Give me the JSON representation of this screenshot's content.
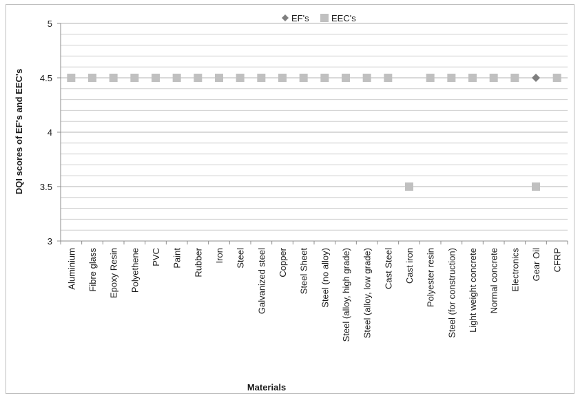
{
  "chart_data": {
    "type": "scatter",
    "title": "",
    "xlabel": "Materials",
    "ylabel": "DQI scores of EF's and EEC's",
    "ylim": [
      3,
      5
    ],
    "y_major_ticks": [
      "3",
      "3.5",
      "4",
      "4.5",
      "5"
    ],
    "minor_grid_step": 0.1,
    "grid": true,
    "legend_position": "top-center",
    "categories": [
      "Aluminium",
      "Fibre glass",
      "Epoxy Resin",
      "Polyethene",
      "PVC",
      "Paint",
      "Rubber",
      "Iron",
      "Steel",
      "Galvanized steel",
      "Copper",
      "Steel Sheet",
      "Steel (no alloy)",
      "Steel (alloy, high grade)",
      "Steel (alloy, low grade)",
      "Cast Steel",
      "Cast iron",
      "Polyester resin",
      "Steel (for construction)",
      "Light weight concrete",
      "Normal concrete",
      "Electronics",
      "Gear Oil",
      "CFRP"
    ],
    "series": [
      {
        "name": "EF's",
        "marker": "diamond",
        "color": "#7f7f7f",
        "values": [
          null,
          null,
          null,
          null,
          null,
          null,
          null,
          null,
          null,
          null,
          null,
          null,
          null,
          null,
          null,
          null,
          null,
          null,
          null,
          null,
          null,
          null,
          4.5,
          null
        ]
      },
      {
        "name": "EEC's",
        "marker": "square",
        "color": "#c0c0c0",
        "values": [
          4.5,
          4.5,
          4.5,
          4.5,
          4.5,
          4.5,
          4.5,
          4.5,
          4.5,
          4.5,
          4.5,
          4.5,
          4.5,
          4.5,
          4.5,
          4.5,
          3.5,
          4.5,
          4.5,
          4.5,
          4.5,
          4.5,
          3.5,
          4.5
        ]
      }
    ]
  }
}
